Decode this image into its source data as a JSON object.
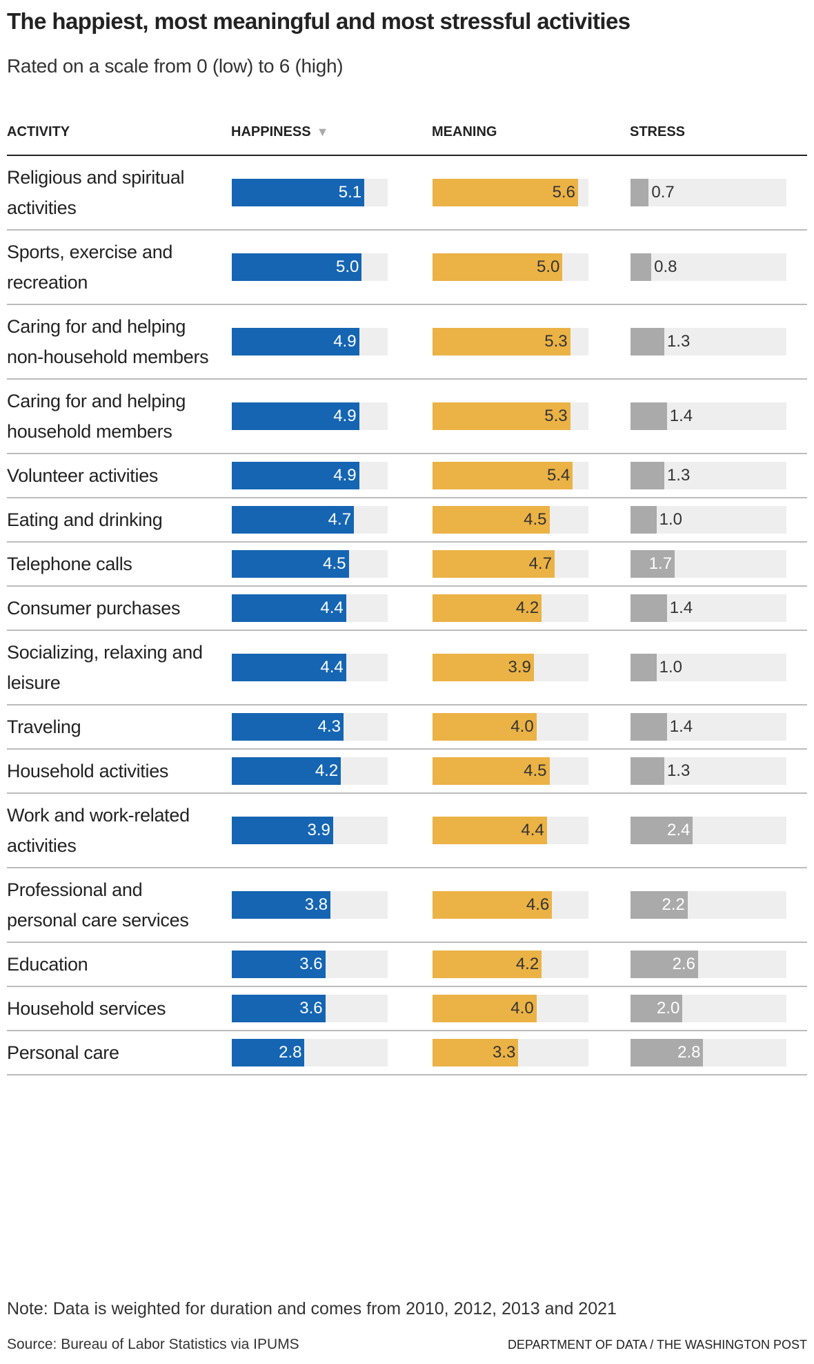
{
  "chart_data": {
    "type": "table",
    "title": "The happiest, most meaningful and most stressful activities",
    "subtitle": "Rated on a scale from 0 (low) to 6 (high)",
    "scale": [
      0,
      6
    ],
    "columns": [
      "ACTIVITY",
      "HAPPINESS",
      "MEANING",
      "STRESS"
    ],
    "sorted_by": "HAPPINESS",
    "sort_icon": "triangle-down-icon",
    "colors": {
      "happiness": "#1565b3",
      "meaning": "#ebb245",
      "stress": "#aaaaaa",
      "track": "#eeeeee"
    },
    "rows": [
      {
        "activity": "Religious and spiritual activities",
        "happiness": "5.1",
        "meaning": "5.6",
        "stress": "0.7"
      },
      {
        "activity": "Sports, exercise and recreation",
        "happiness": "5.0",
        "meaning": "5.0",
        "stress": "0.8"
      },
      {
        "activity": "Caring for and helping non-household members",
        "happiness": "4.9",
        "meaning": "5.3",
        "stress": "1.3"
      },
      {
        "activity": "Caring for and helping household members",
        "happiness": "4.9",
        "meaning": "5.3",
        "stress": "1.4"
      },
      {
        "activity": "Volunteer activities",
        "happiness": "4.9",
        "meaning": "5.4",
        "stress": "1.3"
      },
      {
        "activity": "Eating and drinking",
        "happiness": "4.7",
        "meaning": "4.5",
        "stress": "1.0"
      },
      {
        "activity": "Telephone calls",
        "happiness": "4.5",
        "meaning": "4.7",
        "stress": "1.7"
      },
      {
        "activity": "Consumer purchases",
        "happiness": "4.4",
        "meaning": "4.2",
        "stress": "1.4"
      },
      {
        "activity": "Socializing, relaxing and leisure",
        "happiness": "4.4",
        "meaning": "3.9",
        "stress": "1.0"
      },
      {
        "activity": "Traveling",
        "happiness": "4.3",
        "meaning": "4.0",
        "stress": "1.4"
      },
      {
        "activity": "Household activities",
        "happiness": "4.2",
        "meaning": "4.5",
        "stress": "1.3"
      },
      {
        "activity": "Work and work-related activities",
        "happiness": "3.9",
        "meaning": "4.4",
        "stress": "2.4"
      },
      {
        "activity": "Professional and personal care services",
        "happiness": "3.8",
        "meaning": "4.6",
        "stress": "2.2"
      },
      {
        "activity": "Education",
        "happiness": "3.6",
        "meaning": "4.2",
        "stress": "2.6"
      },
      {
        "activity": "Household services",
        "happiness": "3.6",
        "meaning": "4.0",
        "stress": "2.0"
      },
      {
        "activity": "Personal care",
        "happiness": "2.8",
        "meaning": "3.3",
        "stress": "2.8"
      }
    ]
  },
  "footer": {
    "note": "Note: Data is weighted for duration and comes from 2010, 2012, 2013 and 2021",
    "source": "Source: Bureau of Labor Statistics via IPUMS",
    "credit": "DEPARTMENT OF DATA / THE WASHINGTON POST"
  }
}
